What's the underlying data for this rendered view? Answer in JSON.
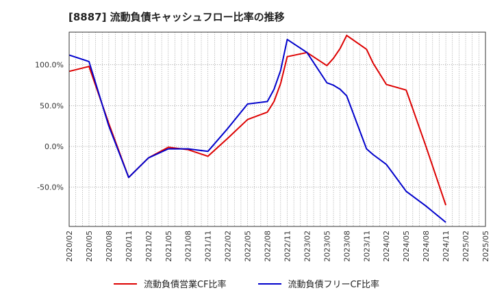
{
  "chart_data": {
    "type": "line",
    "title": "[8887]  流動負債キャッシュフロー比率の推移",
    "xlabel": "",
    "ylabel": "",
    "ylim": [
      -98,
      140
    ],
    "yticks": [
      -50,
      0,
      50,
      100
    ],
    "ytick_labels": [
      "-50.0%",
      "0.0%",
      "50.0%",
      "100.0%"
    ],
    "x_tick_labels": [
      "2020/02",
      "2020/05",
      "2020/08",
      "2020/11",
      "2021/02",
      "2021/05",
      "2021/08",
      "2021/11",
      "2022/02",
      "2022/05",
      "2022/08",
      "2022/11",
      "2023/02",
      "2023/05",
      "2023/08",
      "2023/11",
      "2024/02",
      "2024/05",
      "2024/08",
      "2024/11",
      "2025/02",
      "2025/05"
    ],
    "x_range": [
      0,
      63
    ],
    "grid": true,
    "series": [
      {
        "name": "流動負債営業CF比率",
        "color": "#dd0000",
        "points": [
          [
            0,
            92
          ],
          [
            3,
            98
          ],
          [
            6,
            28
          ],
          [
            9,
            -38
          ],
          [
            12,
            -14
          ],
          [
            15,
            -1
          ],
          [
            18,
            -4
          ],
          [
            21,
            -12
          ],
          [
            24,
            10
          ],
          [
            27,
            33
          ],
          [
            30,
            42
          ],
          [
            31,
            55
          ],
          [
            32,
            77
          ],
          [
            33,
            110
          ],
          [
            36,
            115
          ],
          [
            39,
            99
          ],
          [
            40,
            108
          ],
          [
            41,
            120
          ],
          [
            42,
            136
          ],
          [
            45,
            119
          ],
          [
            46,
            102
          ],
          [
            48,
            76
          ],
          [
            51,
            69
          ],
          [
            54,
            0
          ],
          [
            57,
            -72
          ]
        ]
      },
      {
        "name": "流動負債フリーCF比率",
        "color": "#0000cc",
        "points": [
          [
            0,
            112
          ],
          [
            3,
            104
          ],
          [
            6,
            25
          ],
          [
            9,
            -38
          ],
          [
            12,
            -14
          ],
          [
            15,
            -3
          ],
          [
            18,
            -3
          ],
          [
            21,
            -6
          ],
          [
            24,
            22
          ],
          [
            27,
            52
          ],
          [
            30,
            55
          ],
          [
            31,
            70
          ],
          [
            32,
            93
          ],
          [
            33,
            131
          ],
          [
            36,
            115
          ],
          [
            39,
            78
          ],
          [
            40,
            75
          ],
          [
            41,
            70
          ],
          [
            42,
            62
          ],
          [
            45,
            -3
          ],
          [
            46,
            -10
          ],
          [
            48,
            -22
          ],
          [
            49,
            -33
          ],
          [
            51,
            -55
          ],
          [
            54,
            -73
          ],
          [
            57,
            -93
          ]
        ]
      }
    ]
  }
}
